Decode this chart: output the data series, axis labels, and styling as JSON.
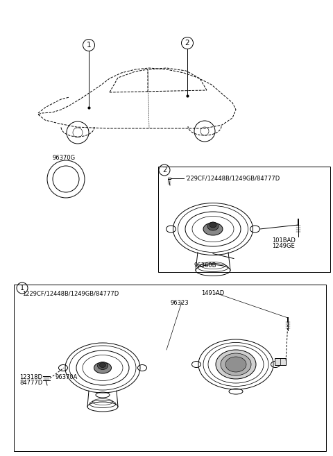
{
  "bg_color": "#ffffff",
  "fig_width": 4.8,
  "fig_height": 6.57,
  "dpi": 100,
  "ring_label": "96370G",
  "box2_screw_label": "'229CF/12448B/1249GB/84777D",
  "box2_part1": "96360B",
  "box2_part2_line1": "101BAD",
  "box2_part2_line2": "1249GE",
  "box1_top_label": "1229CF/12448B/1249GB/84777D",
  "box1_sub1": "1491AD",
  "box1_sub2": "96323",
  "box1_sub3_line1": "12318D",
  "box1_sub3_line2": "84777D",
  "box1_sub4": "96370A"
}
